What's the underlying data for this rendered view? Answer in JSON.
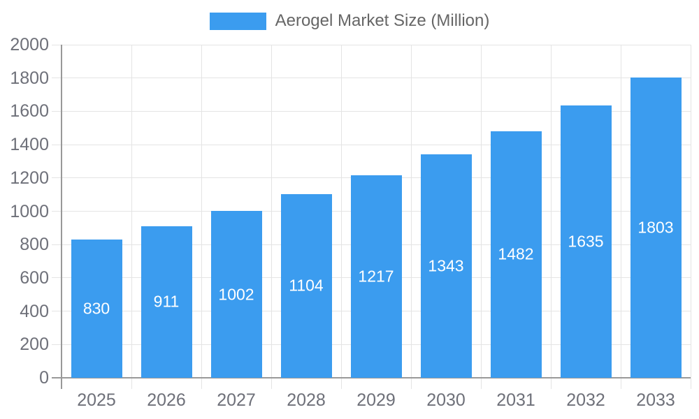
{
  "chart_data": {
    "type": "bar",
    "title": "Aerogel Market Size (Million)",
    "legend": {
      "items": [
        "Aerogel Market Size (Million)"
      ],
      "position": "top-center"
    },
    "categories": [
      "2025",
      "2026",
      "2027",
      "2028",
      "2029",
      "2030",
      "2031",
      "2032",
      "2033"
    ],
    "series": [
      {
        "name": "Aerogel Market Size (Million)",
        "values": [
          830,
          911,
          1002,
          1104,
          1217,
          1343,
          1482,
          1635,
          1803
        ]
      }
    ],
    "xlabel": "",
    "ylabel": "",
    "ylim": [
      0,
      2000
    ],
    "ytick_step": 200,
    "ytick_labels": [
      "0",
      "200",
      "400",
      "600",
      "800",
      "1000",
      "1200",
      "1400",
      "1600",
      "1800",
      "2000"
    ],
    "grid": true,
    "value_labels_inside_bars": true,
    "colors": {
      "bar": "#3B9CEF",
      "bar_value_label": "#FFFFFF",
      "axis_label": "#6E7079",
      "legend_text": "#666666",
      "gridline": "#E4E4E4",
      "axis_line": "#999999",
      "background": "#FFFFFF"
    }
  }
}
